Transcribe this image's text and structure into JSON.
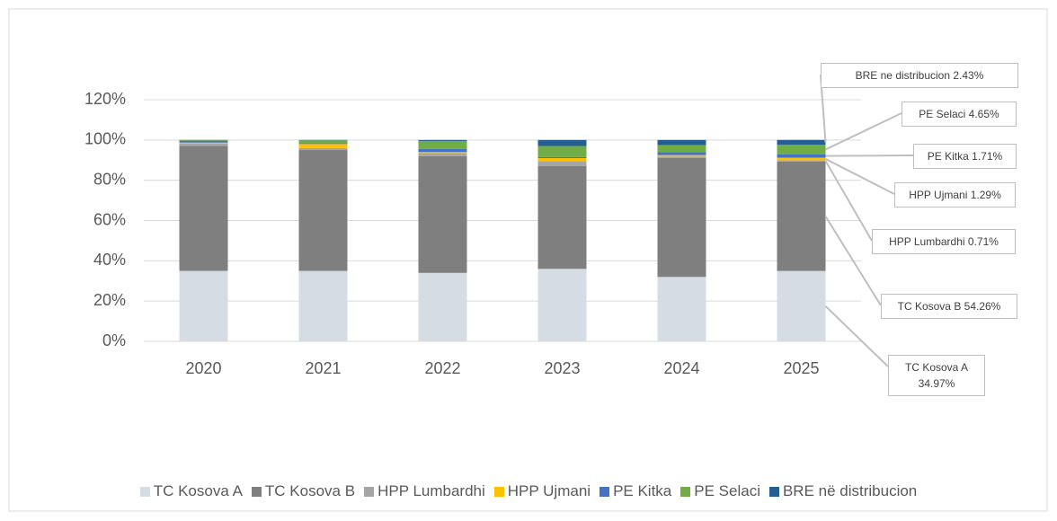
{
  "chart_data": {
    "type": "stacked_bar",
    "categories": [
      "2020",
      "2021",
      "2022",
      "2023",
      "2024",
      "2025"
    ],
    "series": [
      {
        "name": "TC Kosova A",
        "color": "#d6dce4",
        "values": [
          35,
          35,
          34,
          36,
          32,
          34.97
        ]
      },
      {
        "name": "TC Kosova B",
        "color": "#7f7f7f",
        "values": [
          62,
          60,
          58,
          51,
          59,
          54.26
        ]
      },
      {
        "name": "HPP Lumbardhi",
        "color": "#a5a5a5",
        "values": [
          1.3,
          1,
          1.5,
          2.5,
          0.8,
          0.71
        ]
      },
      {
        "name": "HPP Ujmani",
        "color": "#ffc000",
        "values": [
          0.4,
          2,
          0.5,
          1.5,
          0.7,
          1.29
        ]
      },
      {
        "name": "PE Kitka",
        "color": "#4472c4",
        "values": [
          0.8,
          0.5,
          1.5,
          0.5,
          1.5,
          1.71
        ]
      },
      {
        "name": "PE Selaci",
        "color": "#70ad47",
        "values": [
          0.3,
          1.3,
          4,
          5.5,
          3.5,
          4.65
        ]
      },
      {
        "name": "BRE në distribucion",
        "color": "#255e91",
        "values": [
          0.2,
          0.2,
          0.5,
          3,
          2.5,
          2.43
        ]
      }
    ],
    "annotations": [
      "TC Kosova A 34.97%",
      "TC Kosova B 54.26%",
      "HPP Lumbardhi 0.71%",
      "HPP Ujmani 1.29%",
      "PE Kitka 1.71%",
      "PE Selaci 4.65%",
      "BRE ne distribucion 2.43%"
    ],
    "ylim": [
      0,
      120
    ],
    "yticks": [
      {
        "value": 0,
        "label": "0%"
      },
      {
        "value": 20,
        "label": "20%"
      },
      {
        "value": 40,
        "label": "40%"
      },
      {
        "value": 60,
        "label": "60%"
      },
      {
        "value": 80,
        "label": "80%"
      },
      {
        "value": 100,
        "label": "100%"
      },
      {
        "value": 120,
        "label": "120%"
      }
    ],
    "grid": true,
    "legend": "bottom"
  }
}
